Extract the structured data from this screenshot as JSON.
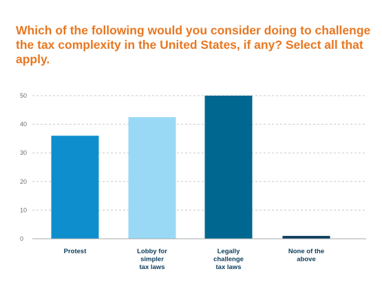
{
  "chart_data": {
    "type": "bar",
    "title": "Which of the following would you consider doing to challenge the tax complexity in the United States, if any? Select all that apply.",
    "categories": [
      [
        "Protest"
      ],
      [
        "Lobby for",
        "simpler",
        "tax laws"
      ],
      [
        "Legally",
        "challenge",
        "tax laws"
      ],
      [
        "None of the",
        "above"
      ]
    ],
    "values": [
      36,
      42.5,
      50,
      1
    ],
    "colors": [
      "#0f8ecd",
      "#99d9f5",
      "#006890",
      "#0b3d5c"
    ],
    "ylim": [
      0,
      50
    ],
    "yticks": [
      0,
      10,
      20,
      30,
      40,
      50
    ],
    "grid": true,
    "title_color": "#e87722"
  }
}
